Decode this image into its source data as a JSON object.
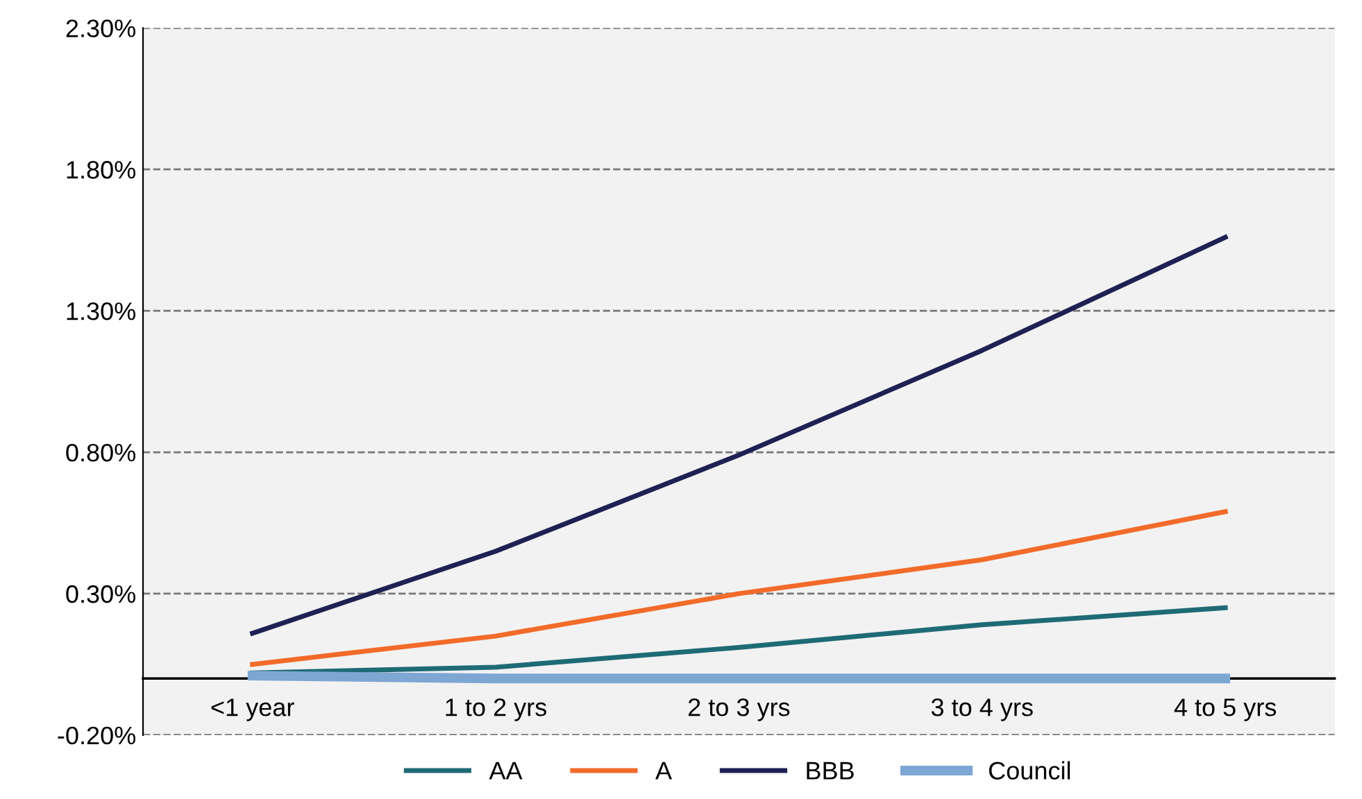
{
  "chart_data": {
    "type": "line",
    "categories": [
      "<1 year",
      "1 to 2 yrs",
      "2 to 3 yrs",
      "3 to 4 yrs",
      "4 to 5 yrs"
    ],
    "series": [
      {
        "name": "AA",
        "color": "#1f6b75",
        "values": [
          0.02,
          0.04,
          0.11,
          0.19,
          0.25
        ]
      },
      {
        "name": "A",
        "color": "#f26b2a",
        "values": [
          0.05,
          0.15,
          0.3,
          0.42,
          0.59
        ]
      },
      {
        "name": "BBB",
        "color": "#1f2154",
        "values": [
          0.16,
          0.45,
          0.79,
          1.16,
          1.56
        ]
      },
      {
        "name": "Council",
        "color": "#7ea6d3",
        "values": [
          0.01,
          0.0,
          0.0,
          0.0,
          0.0
        ]
      }
    ],
    "ylim": [
      -0.2,
      2.3
    ],
    "yticks": [
      {
        "value": -0.2,
        "label": "-0.20%"
      },
      {
        "value": 0.3,
        "label": "0.30%"
      },
      {
        "value": 0.8,
        "label": "0.80%"
      },
      {
        "value": 1.3,
        "label": "1.30%"
      },
      {
        "value": 1.8,
        "label": "1.80%"
      },
      {
        "value": 2.3,
        "label": "2.30%"
      }
    ],
    "grid": "y",
    "legend": "bottom",
    "marker": "none",
    "line_style": "solid"
  }
}
